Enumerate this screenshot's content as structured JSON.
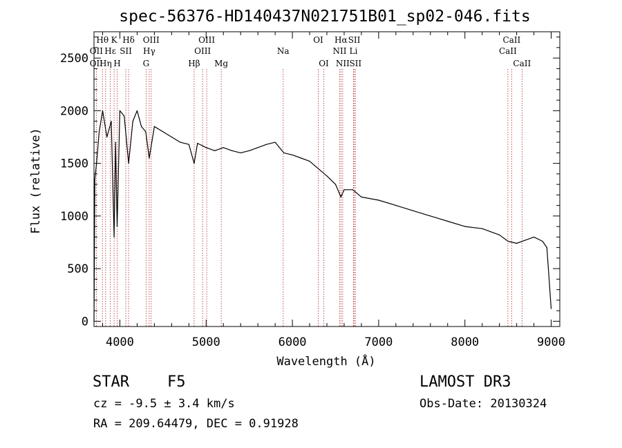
{
  "chart_data": {
    "type": "line",
    "title": "spec-56376-HD140437N021751B01_sp02-046.fits",
    "xlabel": "Wavelength (Å)",
    "ylabel": "Flux (relative)",
    "xlim": [
      3700,
      9100
    ],
    "ylim": [
      -50,
      2750
    ],
    "x_ticks": [
      4000,
      5000,
      6000,
      7000,
      8000,
      9000
    ],
    "y_ticks": [
      0,
      500,
      1000,
      1500,
      2000,
      2500
    ],
    "grid": false,
    "series": [
      {
        "name": "spectrum",
        "x": [
          3700,
          3710,
          3730,
          3760,
          3800,
          3850,
          3900,
          3933,
          3950,
          3968,
          4000,
          4050,
          4101,
          4150,
          4200,
          4250,
          4300,
          4340,
          4400,
          4500,
          4600,
          4700,
          4800,
          4861,
          4900,
          5000,
          5100,
          5200,
          5300,
          5400,
          5500,
          5600,
          5700,
          5800,
          5900,
          6000,
          6100,
          6200,
          6300,
          6400,
          6500,
          6563,
          6600,
          6700,
          6800,
          7000,
          7200,
          7400,
          7600,
          7800,
          8000,
          8200,
          8400,
          8500,
          8600,
          8700,
          8800,
          8900,
          8950,
          9000
        ],
        "y": [
          0,
          1350,
          1500,
          1800,
          2000,
          1750,
          1900,
          800,
          1700,
          900,
          2000,
          1950,
          1500,
          1900,
          2000,
          1850,
          1800,
          1550,
          1850,
          1800,
          1750,
          1700,
          1680,
          1500,
          1690,
          1650,
          1620,
          1650,
          1620,
          1600,
          1620,
          1650,
          1680,
          1700,
          1600,
          1580,
          1550,
          1520,
          1450,
          1380,
          1300,
          1180,
          1250,
          1250,
          1180,
          1150,
          1100,
          1050,
          1000,
          950,
          900,
          880,
          820,
          760,
          740,
          770,
          800,
          760,
          700,
          120
        ]
      }
    ],
    "line_markers": {
      "row1": [
        {
          "label": "Hθ",
          "x": 3798
        },
        {
          "label": "K",
          "x": 3933
        },
        {
          "label": "Hδ",
          "x": 4101
        },
        {
          "label": "OIII",
          "x": 4363
        },
        {
          "label": "OIII",
          "x": 5007
        },
        {
          "label": "OI",
          "x": 6300
        },
        {
          "label": "Hα",
          "x": 6563
        },
        {
          "label": "SII",
          "x": 6717
        },
        {
          "label": "CaII",
          "x": 8542
        }
      ],
      "row2": [
        {
          "label": "OII",
          "x": 3727
        },
        {
          "label": "Hε",
          "x": 3889
        },
        {
          "label": "SII",
          "x": 4069
        },
        {
          "label": "Hγ",
          "x": 4340
        },
        {
          "label": "OIII",
          "x": 4959
        },
        {
          "label": "Na",
          "x": 5893
        },
        {
          "label": "NII",
          "x": 6548
        },
        {
          "label": "Li",
          "x": 6708
        },
        {
          "label": "CaII",
          "x": 8498
        }
      ],
      "row3": [
        {
          "label": "OII",
          "x": 3727
        },
        {
          "label": "Hη",
          "x": 3835
        },
        {
          "label": "H",
          "x": 3968
        },
        {
          "label": "G",
          "x": 4304
        },
        {
          "label": "Hβ",
          "x": 4861
        },
        {
          "label": "Mg",
          "x": 5175
        },
        {
          "label": "OI",
          "x": 6364
        },
        {
          "label": "NII",
          "x": 6583
        },
        {
          "label": "SII",
          "x": 6731
        },
        {
          "label": "CaII",
          "x": 8662
        }
      ]
    }
  },
  "info": {
    "class": "STAR",
    "subclass": "F5",
    "survey": "LAMOST DR3",
    "cz": "cz = -9.5 ± 3.4 km/s",
    "obs_date": "Obs-Date: 20130324",
    "radec": "RA = 209.64479, DEC =    0.91928"
  }
}
